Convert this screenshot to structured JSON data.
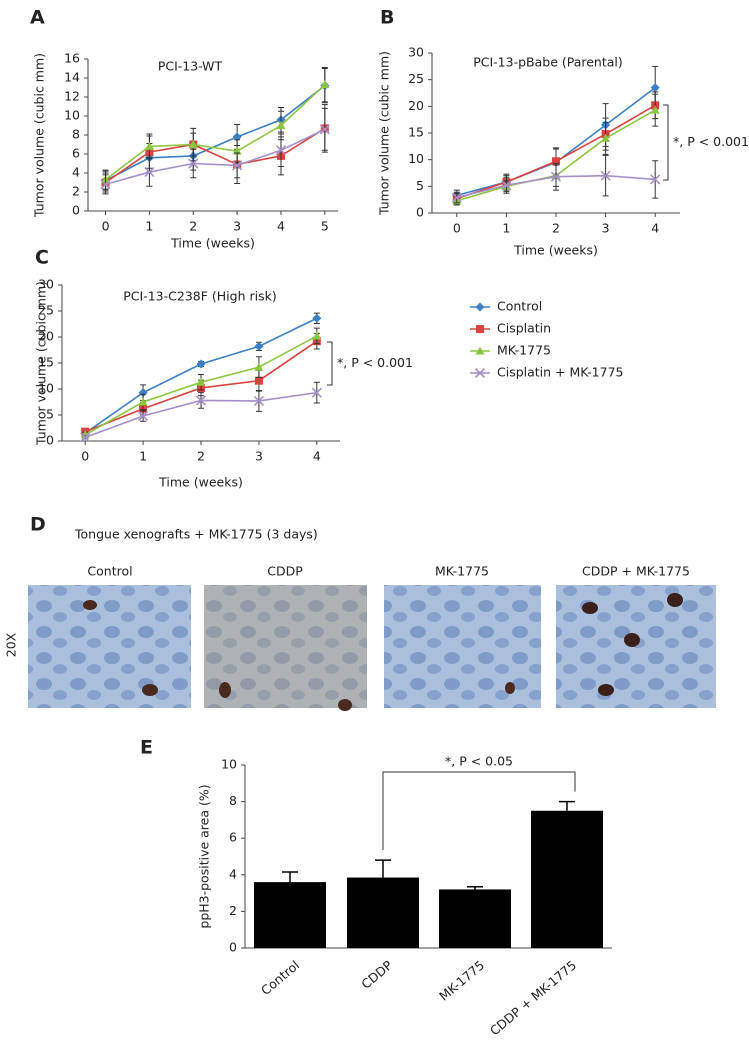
{
  "chart_data": [
    {
      "type": "line",
      "panel_label": "A",
      "title": "PCI-13-WT",
      "x_label": "Time (weeks)",
      "y_label": "Tumor volume (cubic mm)",
      "x": [
        0,
        1,
        2,
        3,
        4,
        5
      ],
      "xlim": [
        -0.4,
        5.3
      ],
      "xticks": [
        0,
        1,
        2,
        3,
        4,
        5
      ],
      "ylim": [
        0,
        16
      ],
      "yticks": [
        0,
        2,
        4,
        6,
        8,
        10,
        12,
        14,
        16
      ],
      "series": [
        {
          "name": "Control",
          "color": "#3b7fc4",
          "marker": "diamond",
          "values": [
            3.2,
            5.6,
            5.8,
            7.8,
            9.6,
            13.2
          ],
          "errors": [
            1.0,
            1.5,
            1.5,
            1.3,
            1.3,
            1.8
          ]
        },
        {
          "name": "Cisplatin",
          "color": "#d9433f",
          "marker": "square",
          "values": [
            3.0,
            6.2,
            7.0,
            4.9,
            5.8,
            8.7
          ],
          "errors": [
            1.0,
            1.7,
            1.7,
            2.0,
            2.0,
            2.5
          ]
        },
        {
          "name": "MK-1775",
          "color": "#8cc63f",
          "marker": "triangle",
          "values": [
            3.3,
            6.8,
            7.0,
            6.3,
            9.0,
            13.3
          ],
          "errors": [
            1.0,
            1.3,
            1.2,
            1.2,
            1.5,
            1.8
          ]
        },
        {
          "name": "Cisplatin + MK-1775",
          "color": "#a58fc9",
          "marker": "x",
          "values": [
            2.8,
            4.1,
            5.0,
            4.8,
            6.4,
            8.6
          ],
          "errors": [
            1.0,
            1.5,
            1.5,
            1.3,
            1.7,
            2.2
          ]
        }
      ]
    },
    {
      "type": "line",
      "panel_label": "B",
      "title": "PCI-13-pBabe (Parental)",
      "x_label": "Time (weeks)",
      "y_label": "Tumor volume (cubic mm)",
      "annotation": "*, P < 0.001",
      "x": [
        0,
        1,
        2,
        3,
        4
      ],
      "xlim": [
        -0.5,
        4.5
      ],
      "xticks": [
        0,
        1,
        2,
        3,
        4
      ],
      "ylim": [
        0,
        30
      ],
      "yticks": [
        0,
        5,
        10,
        15,
        20,
        25,
        30
      ],
      "series": [
        {
          "name": "Control",
          "color": "#3b7fc4",
          "marker": "diamond",
          "values": [
            3.3,
            5.8,
            9.5,
            16.5,
            23.5
          ],
          "errors": [
            1.0,
            1.5,
            2.5,
            4.0,
            4.0
          ]
        },
        {
          "name": "Cisplatin",
          "color": "#d9433f",
          "marker": "square",
          "values": [
            2.7,
            5.8,
            9.7,
            14.8,
            20.2
          ],
          "errors": [
            1.0,
            1.2,
            2.5,
            3.0,
            2.5
          ]
        },
        {
          "name": "MK-1775",
          "color": "#8cc63f",
          "marker": "triangle",
          "values": [
            2.3,
            5.0,
            7.0,
            14.0,
            19.3
          ],
          "errors": [
            0.8,
            1.0,
            2.0,
            3.0,
            3.0
          ]
        },
        {
          "name": "Cisplatin + MK-1775",
          "color": "#a58fc9",
          "marker": "x",
          "values": [
            2.9,
            5.2,
            6.8,
            7.0,
            6.3
          ],
          "errors": [
            1.0,
            1.5,
            2.5,
            3.8,
            3.5
          ]
        }
      ]
    },
    {
      "type": "line",
      "panel_label": "C",
      "title": "PCI-13-C238F (High risk)",
      "x_label": "Time (weeks)",
      "y_label": "Tumor volume (cubic mm)",
      "annotation": "*, P < 0.001",
      "legend": "right",
      "x": [
        0,
        1,
        2,
        3,
        4
      ],
      "xlim": [
        -0.4,
        4.4
      ],
      "xticks": [
        0,
        1,
        2,
        3,
        4
      ],
      "ylim": [
        0,
        30
      ],
      "yticks": [
        0,
        5,
        10,
        15,
        20,
        25,
        30
      ],
      "series": [
        {
          "name": "Control",
          "color": "#3b7fc4",
          "marker": "diamond",
          "values": [
            1.5,
            9.3,
            14.8,
            18.2,
            23.6
          ],
          "errors": [
            0.5,
            1.5,
            0.5,
            0.8,
            1.0
          ]
        },
        {
          "name": "Cisplatin",
          "color": "#d9433f",
          "marker": "square",
          "values": [
            1.8,
            6.2,
            10.2,
            11.6,
            19.2
          ],
          "errors": [
            0.5,
            1.2,
            1.5,
            2.0,
            1.5
          ]
        },
        {
          "name": "MK-1775",
          "color": "#8cc63f",
          "marker": "triangle",
          "values": [
            1.2,
            7.5,
            11.3,
            14.2,
            20.2
          ],
          "errors": [
            0.5,
            1.5,
            1.5,
            2.0,
            1.5
          ]
        },
        {
          "name": "Cisplatin + MK-1775",
          "color": "#a58fc9",
          "marker": "x",
          "values": [
            0.7,
            4.8,
            7.8,
            7.7,
            9.3
          ],
          "errors": [
            0.3,
            1.0,
            1.5,
            2.0,
            2.0
          ]
        }
      ]
    },
    {
      "type": "bar",
      "panel_label": "E",
      "y_label": "ppH3-positive area (%)",
      "annotation": "*, P < 0.05",
      "categories": [
        "Control",
        "CDDP",
        "MK-1775",
        "CDDP + MK-1775"
      ],
      "values": [
        3.6,
        3.85,
        3.2,
        7.5
      ],
      "errors": [
        0.55,
        0.95,
        0.15,
        0.5
      ],
      "color": "#000000",
      "ylim": [
        0,
        10
      ],
      "yticks": [
        0,
        2,
        4,
        6,
        8,
        10
      ]
    }
  ],
  "panel_d": {
    "label": "D",
    "title": "Tongue xenografts + MK-1775 (3 days)",
    "magnification": "20X",
    "images": [
      "Control",
      "CDDP",
      "MK-1775",
      "CDDP + MK-1775"
    ]
  }
}
